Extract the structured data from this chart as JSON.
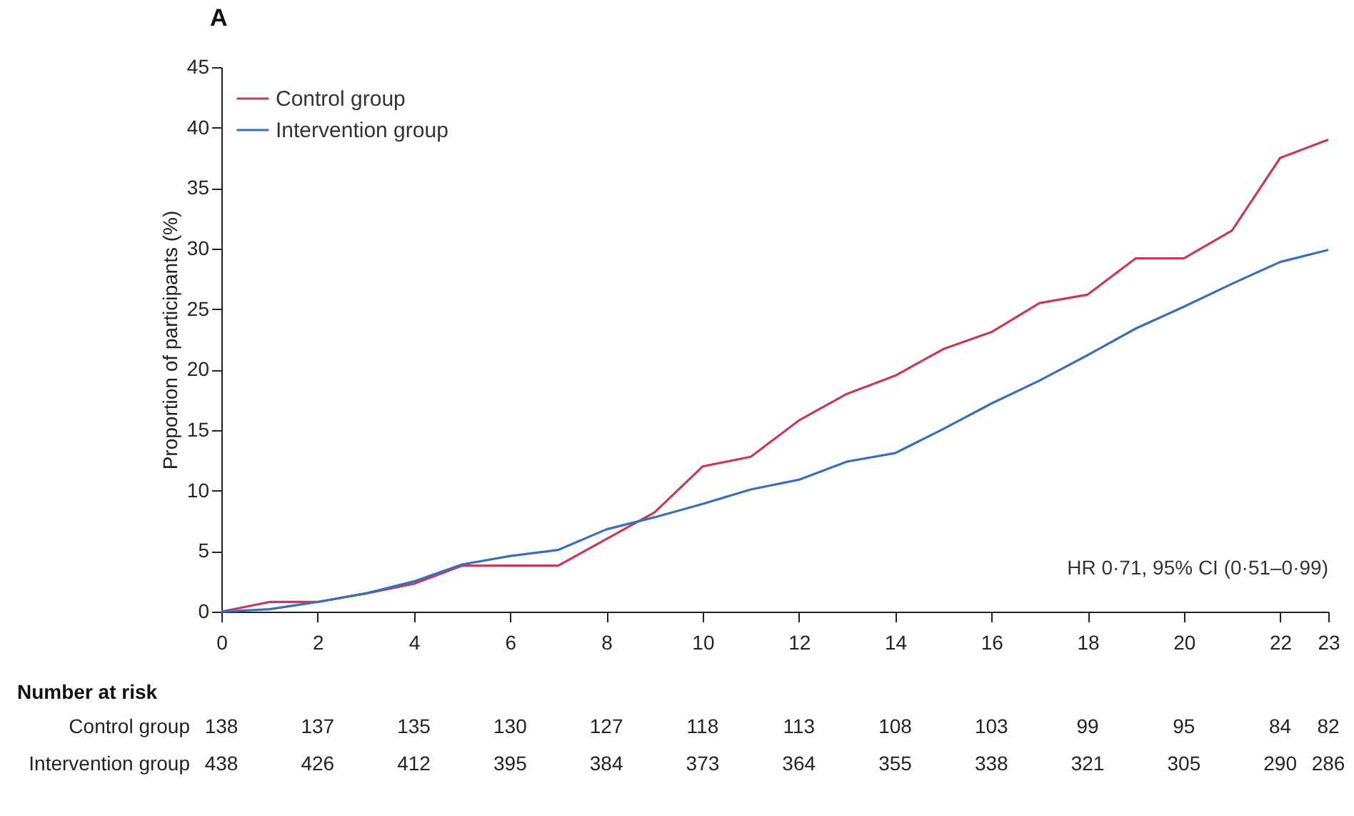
{
  "chart_data": {
    "type": "line",
    "title": "A",
    "ylabel": "Proportion of participants (%)",
    "x": [
      0,
      1,
      2,
      3,
      4,
      5,
      6,
      7,
      8,
      9,
      10,
      11,
      12,
      13,
      14,
      15,
      16,
      17,
      18,
      19,
      20,
      21,
      22,
      23
    ],
    "series": [
      {
        "name": "Control group",
        "color": "#c8385a",
        "values": [
          0,
          0.8,
          0.8,
          1.5,
          2.3,
          3.8,
          3.8,
          3.8,
          6,
          8.2,
          12,
          12.8,
          15.8,
          18,
          19.5,
          21.7,
          23.1,
          25.5,
          26.2,
          29.2,
          29.2,
          31.5,
          37.5,
          39
        ]
      },
      {
        "name": "Intervention group",
        "color": "#3a6fb8",
        "values": [
          0,
          0.2,
          0.8,
          1.5,
          2.5,
          3.9,
          4.6,
          5.1,
          6.8,
          7.8,
          8.9,
          10.1,
          10.9,
          12.4,
          13.1,
          15.1,
          17.2,
          19.1,
          21.2,
          23.4,
          25.2,
          27.1,
          28.9,
          29.9
        ]
      }
    ],
    "xlim": [
      0,
      23
    ],
    "xticks": [
      0,
      2,
      4,
      6,
      8,
      10,
      12,
      14,
      16,
      18,
      20,
      22,
      23
    ],
    "ylim": [
      0,
      45
    ],
    "yticks": [
      0,
      5,
      10,
      15,
      20,
      25,
      30,
      35,
      40,
      45
    ],
    "grid": false,
    "legend": "top left",
    "marker": "none",
    "line_style": "solid",
    "annotations": [
      "HR 0·71, 95% CI (0·51–0·99)",
      "Number at risk",
      "Control group",
      "138",
      "137",
      "135",
      "130",
      "127",
      "118",
      "113",
      "108",
      "103",
      "99",
      "95",
      "84",
      "82",
      "Intervention group",
      "438",
      "426",
      "412",
      "395",
      "384",
      "373",
      "364",
      "355",
      "338",
      "321",
      "305",
      "290",
      "286"
    ]
  }
}
